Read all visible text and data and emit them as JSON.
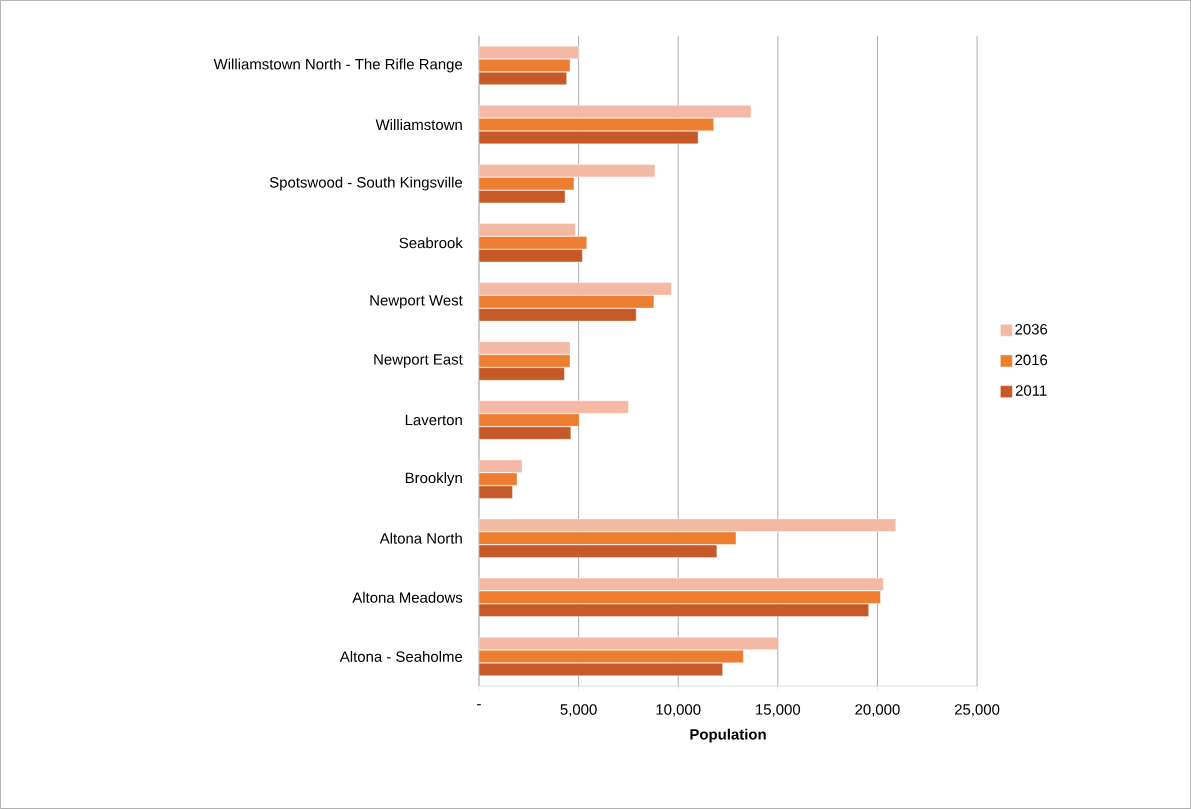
{
  "chart_data": {
    "type": "bar",
    "orientation": "horizontal",
    "xlabel": "Population",
    "categories": [
      "Williamstown North - The Rifle Range",
      "Williamstown",
      "Spotswood - South Kingsville",
      "Seabrook",
      "Newport West",
      "Newport East",
      "Laverton",
      "Brooklyn",
      "Altona North",
      "Altona Meadows",
      "Altona - Seaholme"
    ],
    "series": [
      {
        "name": "2036",
        "color": "#f4b9a4",
        "values": [
          5000,
          13650,
          8830,
          4840,
          9660,
          4570,
          7500,
          2160,
          20920,
          20300,
          15040
        ]
      },
      {
        "name": "2016",
        "color": "#ed7d31",
        "values": [
          4570,
          11780,
          4770,
          5410,
          8780,
          4570,
          5030,
          1910,
          12900,
          20150,
          13270
        ]
      },
      {
        "name": "2011",
        "color": "#c55a28",
        "values": [
          4400,
          11000,
          4320,
          5190,
          7890,
          4290,
          4610,
          1680,
          11940,
          19560,
          12230
        ]
      }
    ],
    "xlim": [
      0,
      25000
    ],
    "xticks": [
      {
        "value": 0,
        "label": "-"
      },
      {
        "value": 5000,
        "label": "5,000"
      },
      {
        "value": 10000,
        "label": "10,000"
      },
      {
        "value": 15000,
        "label": "15,000"
      },
      {
        "value": 20000,
        "label": "20,000"
      },
      {
        "value": 25000,
        "label": "25,000"
      }
    ],
    "grid": "x",
    "legend": "right"
  }
}
